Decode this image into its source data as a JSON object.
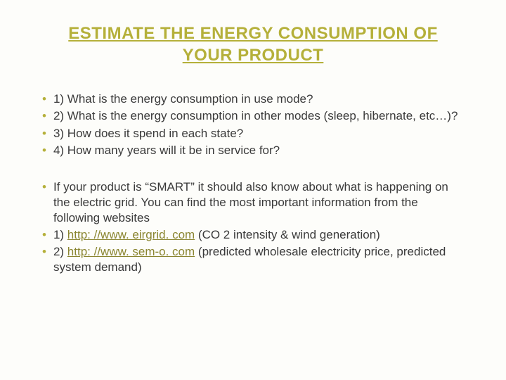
{
  "colors": {
    "background": "#fdfdfa",
    "title_color": "#b5b03a",
    "bullet_marker_color": "#b5b03a",
    "text_color": "#3a3a3a",
    "link_color": "#8a8530"
  },
  "typography": {
    "title_fontsize": 24,
    "body_fontsize": 17,
    "font_family": "Arial"
  },
  "title": "ESTIMATE THE ENERGY CONSUMPTION OF YOUR PRODUCT",
  "group1": {
    "items": [
      "1) What is the energy consumption in use mode?",
      "2) What is the energy consumption in other modes (sleep, hibernate, etc…)?",
      "3) How does it spend in each state?",
      "4) How many years will it be in service for?"
    ]
  },
  "group2": {
    "intro": "If your product is “SMART” it should also know about what is happening on the electric grid. You can find the most important information from the following websites",
    "link1_prefix": "1) ",
    "link1_url": "http: //www. eirgrid. com",
    "link1_suffix": " (CO 2 intensity & wind generation)",
    "link2_prefix": "2) ",
    "link2_url": "http: //www. sem-o. com",
    "link2_suffix": " (predicted wholesale electricity price, predicted system demand)"
  }
}
